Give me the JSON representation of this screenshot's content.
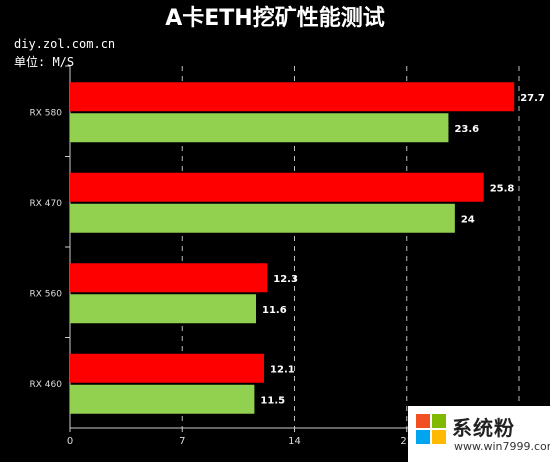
{
  "title": "A卡ETH挖矿性能测试",
  "source": "diy.zol.com.cn",
  "unit_label": "单位: M/S",
  "watermark": {
    "brand": "系统粉",
    "url": "www.win7999.com",
    "logo_colors": [
      "#f25022",
      "#7fba00",
      "#00a4ef",
      "#ffb900"
    ]
  },
  "chart_data": {
    "type": "bar",
    "orientation": "horizontal",
    "categories": [
      "RX 580",
      "RX 470",
      "RX 560",
      "RX 460"
    ],
    "series": [
      {
        "color": "#ff0000",
        "values": [
          27.7,
          25.8,
          12.3,
          12.1
        ]
      },
      {
        "color": "#92d050",
        "values": [
          23.6,
          24,
          11.6,
          11.5
        ]
      }
    ],
    "xlim": [
      0,
      28
    ],
    "xticks": [
      0,
      7,
      14,
      21
    ],
    "grid": "vertical dashed",
    "data_labels": true
  }
}
